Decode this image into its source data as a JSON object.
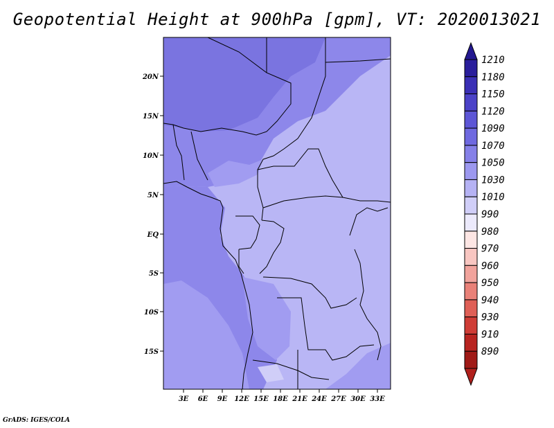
{
  "title": "Geopotential Height at 900hPa [gpm], VT: 2020013021",
  "footer": "GrADS: IGES/COLA",
  "map": {
    "lon_labels": [
      "3E",
      "6E",
      "9E",
      "12E",
      "15E",
      "18E",
      "21E",
      "24E",
      "27E",
      "30E",
      "33E"
    ],
    "lat_labels": [
      "20N",
      "15N",
      "10N",
      "5N",
      "EQ",
      "5S",
      "10S",
      "15S"
    ],
    "fill_levels": [
      {
        "name": "1090-1120",
        "color": "#7a74e0"
      },
      {
        "name": "1070-1090",
        "color": "#8d87ea"
      },
      {
        "name": "1050-1070",
        "color": "#a19cf1"
      },
      {
        "name": "1030-1050",
        "color": "#b9b6f5"
      }
    ]
  },
  "colorbar": {
    "labels": [
      "1210",
      "1180",
      "1150",
      "1120",
      "1090",
      "1070",
      "1050",
      "1030",
      "1010",
      "990",
      "980",
      "970",
      "960",
      "950",
      "940",
      "930",
      "910",
      "890"
    ],
    "colors": [
      "#2a1e9c",
      "#3a2fb5",
      "#4b42c8",
      "#5d56d6",
      "#6f69e0",
      "#8580e8",
      "#9c98ef",
      "#b5b2f4",
      "#d0cef8",
      "#eceafc",
      "#fde6e4",
      "#f8c6c1",
      "#f1a39c",
      "#e98178",
      "#df5f56",
      "#cf3d36",
      "#b82420",
      "#a01a17"
    ],
    "lower_arrow_color": "#b0201c",
    "upper_arrow_color": "#231890"
  }
}
